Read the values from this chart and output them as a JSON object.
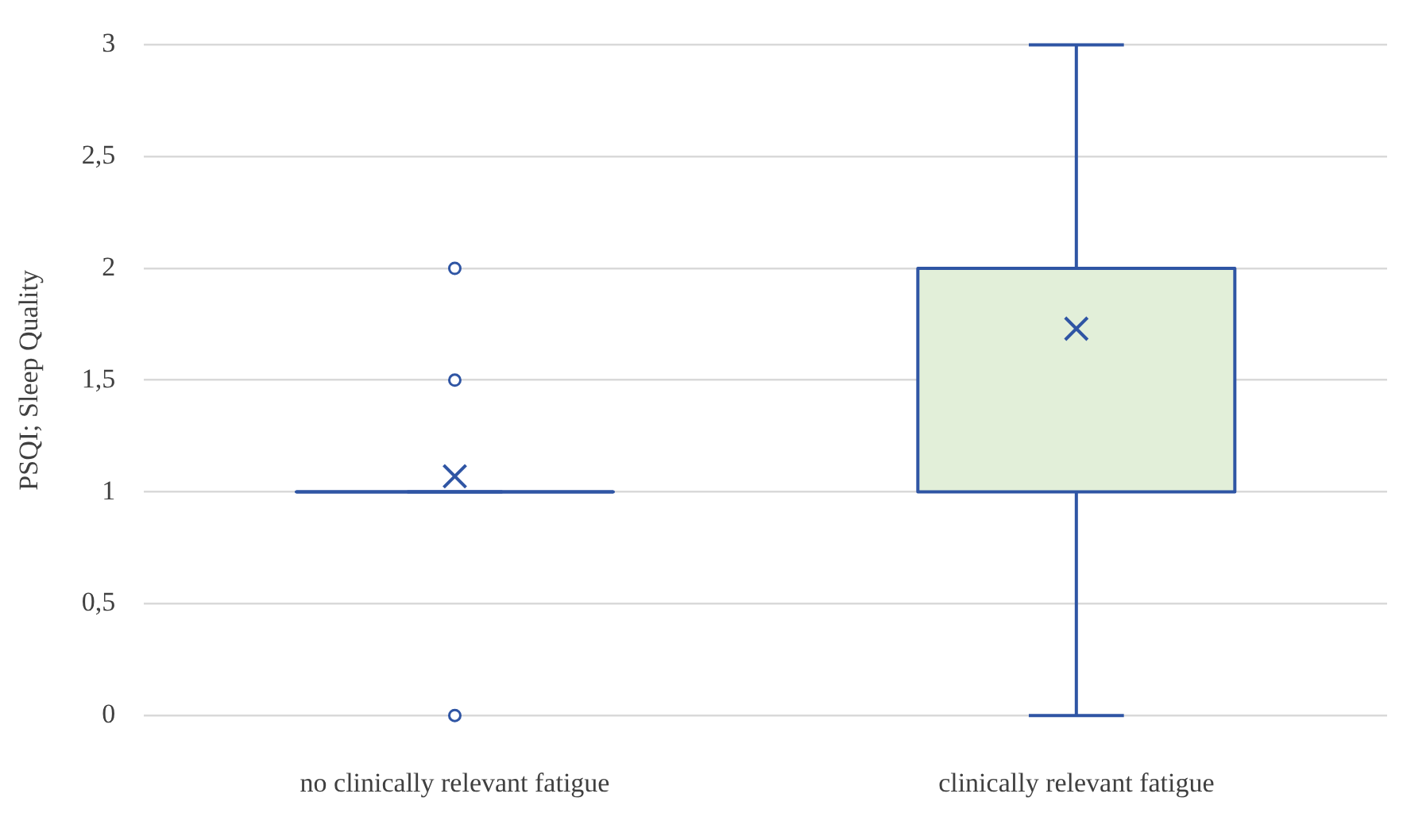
{
  "chart_data": {
    "type": "box",
    "ylabel": "PSQI; Sleep Quality",
    "categories": [
      "no clinically relevant fatigue",
      "clinically relevant fatigue"
    ],
    "boxes": [
      {
        "low": 1,
        "q1": 1,
        "median": 1,
        "q3": 1,
        "high": 1,
        "mean": 1.07,
        "outliers": [
          0,
          1.5,
          2
        ]
      },
      {
        "low": 0,
        "q1": 1,
        "median": 2,
        "q3": 2,
        "high": 3,
        "mean": 1.73
      }
    ],
    "color": "#2f55a4",
    "ylim": [
      0,
      3
    ],
    "yticks": [
      0,
      {
        "value": 0.5,
        "label": "0,5"
      },
      1,
      {
        "value": 1.5,
        "label": "1,5"
      },
      2,
      {
        "value": 2.5,
        "label": "2,5"
      },
      3
    ],
    "grid": "y",
    "marker": "circle"
  }
}
